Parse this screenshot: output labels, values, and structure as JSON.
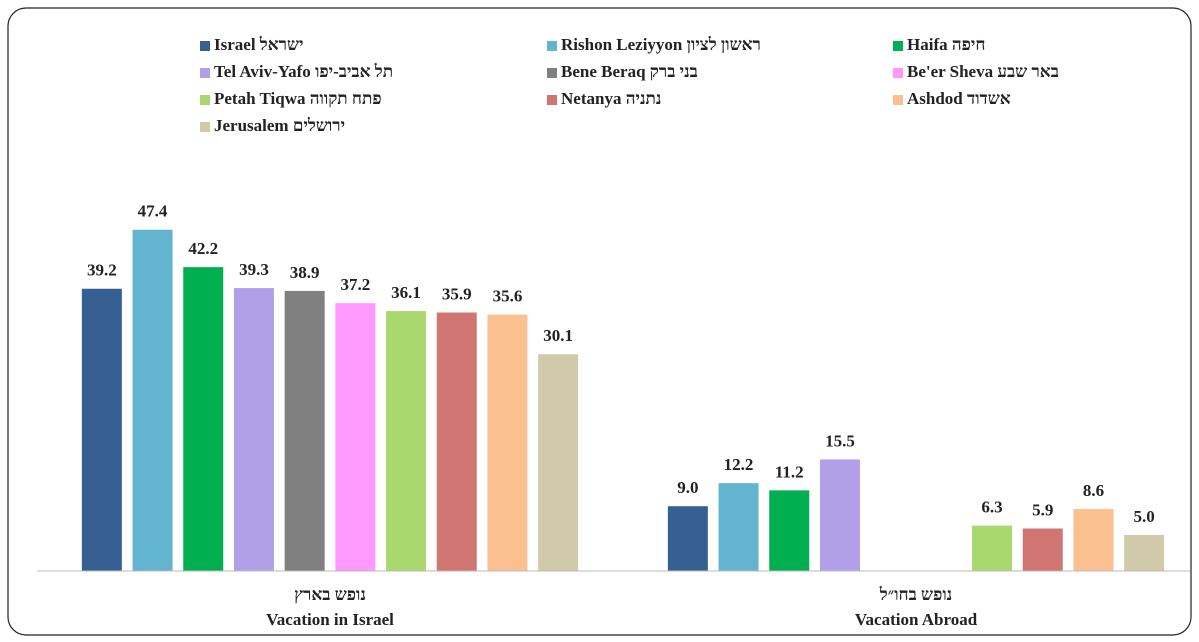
{
  "chart_data": {
    "type": "bar",
    "categories": [
      [
        "נופש בארץ",
        "Vacation in Israel"
      ],
      [
        "נופש בחו״ל",
        "Vacation Abroad"
      ]
    ],
    "ylim": [
      0,
      50
    ],
    "series": [
      {
        "name": "Israel ישראל",
        "color": "#376092",
        "values": [
          39.2,
          9.0
        ],
        "value_labels": [
          "39.2",
          "9.0"
        ]
      },
      {
        "name": "Rishon Leziyyon ראשון לציון",
        "color": "#63b5cf",
        "values": [
          47.4,
          12.2
        ],
        "value_labels": [
          "47.4",
          "12.2"
        ]
      },
      {
        "name": "Haifa חיפה",
        "color": "#00b050",
        "values": [
          42.2,
          11.2
        ],
        "value_labels": [
          "42.2",
          "11.2"
        ]
      },
      {
        "name": "Tel Aviv-Yafo תל אביב-יפו",
        "color": "#b1a0e8",
        "values": [
          39.3,
          15.5
        ],
        "value_labels": [
          "39.3",
          "15.5"
        ]
      },
      {
        "name": "Bene Beraq בני ברק",
        "color": "#808080",
        "values": [
          38.9,
          null
        ],
        "value_labels": [
          "38.9",
          null
        ]
      },
      {
        "name": "Be'er Sheva באר שבע",
        "color": "#ff99ff",
        "values": [
          37.2,
          null
        ],
        "value_labels": [
          "37.2",
          null
        ]
      },
      {
        "name": "Petah Tiqwa פתח תקווה",
        "color": "#a9d86e",
        "values": [
          36.1,
          6.3
        ],
        "value_labels": [
          "36.1",
          "6.3"
        ]
      },
      {
        "name": "Netanya נתניה",
        "color": "#cf7672",
        "values": [
          35.9,
          5.9
        ],
        "value_labels": [
          "35.9",
          "5.9"
        ]
      },
      {
        "name": "Ashdod אשדוד",
        "color": "#fac090",
        "values": [
          35.6,
          8.6
        ],
        "value_labels": [
          "35.6",
          "8.6"
        ]
      },
      {
        "name": "Jerusalem ירושלים",
        "color": "#d0c9aa",
        "values": [
          30.1,
          5.0
        ],
        "value_labels": [
          "30.1",
          "5.0"
        ]
      }
    ]
  }
}
